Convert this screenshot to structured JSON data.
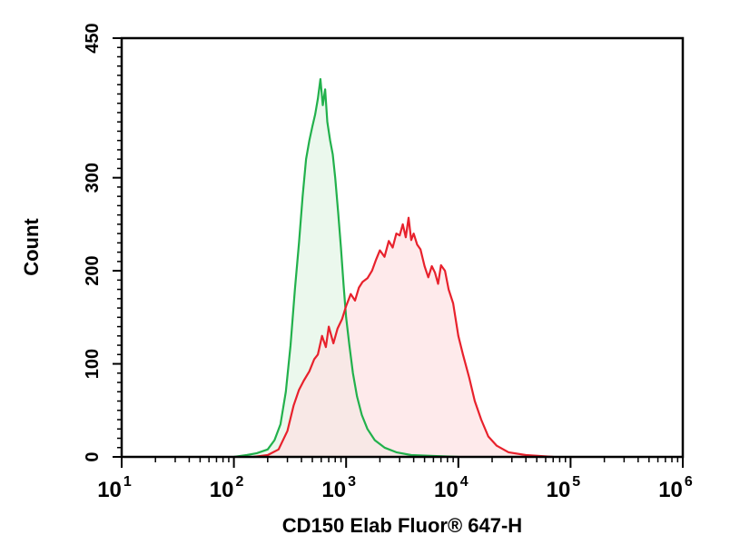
{
  "chart_data": {
    "type": "area",
    "title": "",
    "xlabel": "CD150 Elab Fluor® 647-H",
    "ylabel": "Count",
    "x_scale": "log",
    "xlim": [
      10,
      1000000
    ],
    "ylim": [
      0,
      450
    ],
    "y_ticks": [
      "0",
      "100",
      "200",
      "300",
      "450"
    ],
    "y_tick_values": [
      0,
      100,
      200,
      300,
      450
    ],
    "x_ticks": [
      {
        "value": 10,
        "base": "10",
        "exp": "1"
      },
      {
        "value": 100,
        "base": "10",
        "exp": "2"
      },
      {
        "value": 1000,
        "base": "10",
        "exp": "3"
      },
      {
        "value": 10000,
        "base": "10",
        "exp": "4"
      },
      {
        "value": 100000,
        "base": "10",
        "exp": "5"
      },
      {
        "value": 1000000,
        "base": "10",
        "exp": "6"
      }
    ],
    "grid": false,
    "series": [
      {
        "color": "#22b14c",
        "fill": "#e3f5e6",
        "points": [
          [
            100,
            0
          ],
          [
            130,
            2
          ],
          [
            160,
            4
          ],
          [
            200,
            8
          ],
          [
            230,
            18
          ],
          [
            260,
            35
          ],
          [
            290,
            70
          ],
          [
            320,
            120
          ],
          [
            350,
            180
          ],
          [
            380,
            230
          ],
          [
            410,
            280
          ],
          [
            440,
            320
          ],
          [
            470,
            340
          ],
          [
            500,
            355
          ],
          [
            530,
            368
          ],
          [
            560,
            385
          ],
          [
            590,
            406
          ],
          [
            620,
            378
          ],
          [
            650,
            395
          ],
          [
            680,
            360
          ],
          [
            720,
            340
          ],
          [
            760,
            325
          ],
          [
            800,
            300
          ],
          [
            850,
            262
          ],
          [
            900,
            225
          ],
          [
            950,
            185
          ],
          [
            1000,
            150
          ],
          [
            1070,
            120
          ],
          [
            1150,
            90
          ],
          [
            1250,
            65
          ],
          [
            1380,
            45
          ],
          [
            1550,
            30
          ],
          [
            1800,
            18
          ],
          [
            2200,
            10
          ],
          [
            2800,
            5
          ],
          [
            3800,
            2
          ],
          [
            6000,
            1
          ],
          [
            10000,
            0
          ]
        ]
      },
      {
        "color": "#e8212c",
        "fill": "#fde1e3",
        "points": [
          [
            150,
            0
          ],
          [
            200,
            2
          ],
          [
            250,
            8
          ],
          [
            300,
            28
          ],
          [
            340,
            55
          ],
          [
            380,
            72
          ],
          [
            420,
            82
          ],
          [
            470,
            92
          ],
          [
            520,
            105
          ],
          [
            560,
            110
          ],
          [
            610,
            130
          ],
          [
            660,
            118
          ],
          [
            700,
            140
          ],
          [
            770,
            122
          ],
          [
            840,
            138
          ],
          [
            920,
            148
          ],
          [
            1000,
            162
          ],
          [
            1100,
            175
          ],
          [
            1200,
            168
          ],
          [
            1300,
            182
          ],
          [
            1400,
            188
          ],
          [
            1550,
            192
          ],
          [
            1700,
            200
          ],
          [
            1850,
            212
          ],
          [
            2000,
            222
          ],
          [
            2200,
            215
          ],
          [
            2400,
            232
          ],
          [
            2600,
            225
          ],
          [
            2800,
            240
          ],
          [
            3000,
            238
          ],
          [
            3200,
            250
          ],
          [
            3400,
            236
          ],
          [
            3600,
            257
          ],
          [
            3800,
            233
          ],
          [
            4000,
            240
          ],
          [
            4300,
            228
          ],
          [
            4600,
            223
          ],
          [
            5000,
            205
          ],
          [
            5400,
            193
          ],
          [
            5800,
            205
          ],
          [
            6200,
            198
          ],
          [
            6600,
            186
          ],
          [
            7000,
            206
          ],
          [
            7600,
            200
          ],
          [
            8200,
            180
          ],
          [
            9000,
            165
          ],
          [
            10000,
            130
          ],
          [
            11000,
            110
          ],
          [
            12500,
            85
          ],
          [
            14000,
            60
          ],
          [
            16000,
            40
          ],
          [
            18500,
            22
          ],
          [
            22000,
            12
          ],
          [
            28000,
            5
          ],
          [
            40000,
            2
          ],
          [
            70000,
            0
          ]
        ]
      }
    ]
  }
}
